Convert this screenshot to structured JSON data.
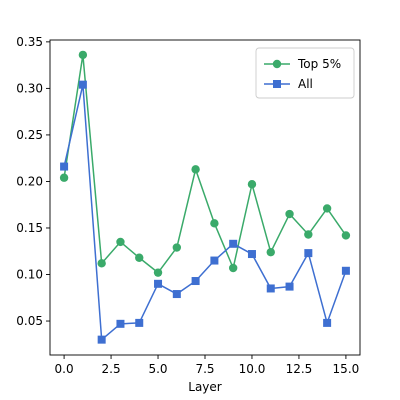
{
  "chart_data": {
    "type": "line",
    "xlabel": "Layer",
    "ylabel": "",
    "xlim": [
      -0.75,
      15.75
    ],
    "ylim": [
      0.0135,
      0.352
    ],
    "xticks": [
      0.0,
      2.5,
      5.0,
      7.5,
      10.0,
      12.5,
      15.0
    ],
    "xtick_labels": [
      "0.0",
      "2.5",
      "5.0",
      "7.5",
      "10.0",
      "12.5",
      "15.0"
    ],
    "yticks": [
      0.05,
      0.1,
      0.15,
      0.2,
      0.25,
      0.3,
      0.35
    ],
    "ytick_labels": [
      "0.05",
      "0.10",
      "0.15",
      "0.20",
      "0.25",
      "0.30",
      "0.35"
    ],
    "grid": false,
    "legend_position": "top-right",
    "x": [
      0,
      1,
      2,
      3,
      4,
      5,
      6,
      7,
      8,
      9,
      10,
      11,
      12,
      13,
      14,
      15
    ],
    "series": [
      {
        "name": "Top 5%",
        "color": "#3aaa6a",
        "marker": "circle",
        "values": [
          0.204,
          0.336,
          0.112,
          0.135,
          0.118,
          0.102,
          0.129,
          0.213,
          0.155,
          0.107,
          0.197,
          0.124,
          0.165,
          0.143,
          0.171,
          0.142
        ]
      },
      {
        "name": "All",
        "color": "#3e6fd1",
        "marker": "square",
        "values": [
          0.216,
          0.304,
          0.03,
          0.047,
          0.048,
          0.09,
          0.079,
          0.093,
          0.115,
          0.133,
          0.122,
          0.085,
          0.087,
          0.123,
          0.048,
          0.104
        ]
      }
    ]
  }
}
